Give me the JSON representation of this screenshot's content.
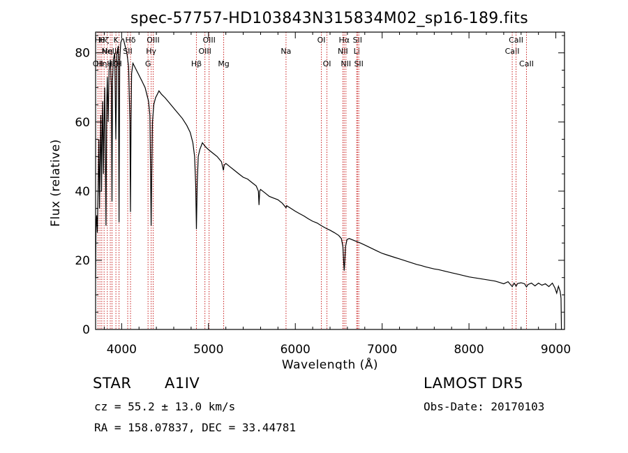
{
  "chart_data": {
    "type": "line",
    "title": "spec-57757-HD103843N315834M02_sp16-189.fits",
    "xlabel": "Wavelength (Å)",
    "ylabel": "Flux (relative)",
    "xlim": [
      3700,
      9100
    ],
    "ylim": [
      0,
      86
    ],
    "x_ticks": [
      4000,
      5000,
      6000,
      7000,
      8000,
      9000
    ],
    "y_ticks": [
      0,
      20,
      40,
      60,
      80
    ],
    "grid": false,
    "series": [
      {
        "color": "#000000",
        "points": [
          [
            3700,
            15
          ],
          [
            3705,
            30
          ],
          [
            3712,
            33
          ],
          [
            3720,
            28
          ],
          [
            3730,
            42
          ],
          [
            3738,
            55
          ],
          [
            3745,
            35
          ],
          [
            3752,
            48
          ],
          [
            3760,
            62
          ],
          [
            3768,
            40
          ],
          [
            3775,
            55
          ],
          [
            3782,
            66
          ],
          [
            3790,
            45
          ],
          [
            3798,
            60
          ],
          [
            3805,
            70
          ],
          [
            3812,
            52
          ],
          [
            3820,
            30
          ],
          [
            3828,
            65
          ],
          [
            3835,
            73
          ],
          [
            3845,
            60
          ],
          [
            3855,
            75
          ],
          [
            3870,
            78
          ],
          [
            3882,
            70
          ],
          [
            3889,
            37
          ],
          [
            3895,
            72
          ],
          [
            3905,
            78
          ],
          [
            3920,
            80
          ],
          [
            3933,
            55
          ],
          [
            3945,
            80
          ],
          [
            3962,
            82
          ],
          [
            3970,
            31
          ],
          [
            3978,
            78
          ],
          [
            3990,
            83
          ],
          [
            4005,
            84
          ],
          [
            4020,
            84
          ],
          [
            4040,
            82
          ],
          [
            4060,
            80
          ],
          [
            4080,
            76
          ],
          [
            4095,
            60
          ],
          [
            4102,
            34
          ],
          [
            4108,
            60
          ],
          [
            4115,
            74
          ],
          [
            4130,
            77
          ],
          [
            4150,
            76
          ],
          [
            4170,
            75
          ],
          [
            4190,
            74
          ],
          [
            4210,
            73
          ],
          [
            4230,
            72
          ],
          [
            4250,
            71
          ],
          [
            4270,
            70
          ],
          [
            4290,
            68
          ],
          [
            4310,
            66
          ],
          [
            4325,
            62
          ],
          [
            4334,
            44
          ],
          [
            4340,
            30
          ],
          [
            4346,
            44
          ],
          [
            4355,
            60
          ],
          [
            4370,
            65
          ],
          [
            4390,
            67
          ],
          [
            4410,
            68
          ],
          [
            4430,
            69
          ],
          [
            4460,
            68
          ],
          [
            4500,
            67
          ],
          [
            4550,
            65.5
          ],
          [
            4600,
            64
          ],
          [
            4650,
            62.5
          ],
          [
            4700,
            61
          ],
          [
            4750,
            59
          ],
          [
            4790,
            57
          ],
          [
            4820,
            54
          ],
          [
            4840,
            50
          ],
          [
            4852,
            42
          ],
          [
            4861,
            29
          ],
          [
            4870,
            42
          ],
          [
            4882,
            50
          ],
          [
            4900,
            52
          ],
          [
            4930,
            54
          ],
          [
            4960,
            53
          ],
          [
            5000,
            52
          ],
          [
            5050,
            51
          ],
          [
            5100,
            50
          ],
          [
            5150,
            48.5
          ],
          [
            5172,
            46
          ],
          [
            5180,
            47.5
          ],
          [
            5200,
            48
          ],
          [
            5250,
            47
          ],
          [
            5300,
            46
          ],
          [
            5350,
            45
          ],
          [
            5400,
            44
          ],
          [
            5450,
            43.5
          ],
          [
            5500,
            42.5
          ],
          [
            5550,
            41.5
          ],
          [
            5575,
            40
          ],
          [
            5582,
            36
          ],
          [
            5590,
            40
          ],
          [
            5600,
            40.5
          ],
          [
            5650,
            39.5
          ],
          [
            5700,
            38.5
          ],
          [
            5750,
            38
          ],
          [
            5800,
            37.5
          ],
          [
            5850,
            36.5
          ],
          [
            5893,
            35.2
          ],
          [
            5900,
            35.8
          ],
          [
            5950,
            35
          ],
          [
            6000,
            34.2
          ],
          [
            6050,
            33.5
          ],
          [
            6100,
            32.8
          ],
          [
            6150,
            32
          ],
          [
            6200,
            31.3
          ],
          [
            6250,
            30.8
          ],
          [
            6300,
            30
          ],
          [
            6350,
            29.3
          ],
          [
            6400,
            28.7
          ],
          [
            6450,
            28
          ],
          [
            6500,
            27.2
          ],
          [
            6530,
            26.3
          ],
          [
            6548,
            24
          ],
          [
            6556,
            20
          ],
          [
            6563,
            17
          ],
          [
            6570,
            20
          ],
          [
            6578,
            24
          ],
          [
            6595,
            26
          ],
          [
            6620,
            26.3
          ],
          [
            6650,
            26
          ],
          [
            6700,
            25.5
          ],
          [
            6750,
            25
          ],
          [
            6800,
            24.4
          ],
          [
            6850,
            23.8
          ],
          [
            6900,
            23.2
          ],
          [
            6950,
            22.6
          ],
          [
            7000,
            22
          ],
          [
            7050,
            21.6
          ],
          [
            7100,
            21.2
          ],
          [
            7150,
            20.8
          ],
          [
            7200,
            20.4
          ],
          [
            7250,
            20
          ],
          [
            7300,
            19.6
          ],
          [
            7350,
            19.2
          ],
          [
            7400,
            18.8
          ],
          [
            7450,
            18.5
          ],
          [
            7500,
            18.1
          ],
          [
            7550,
            17.8
          ],
          [
            7600,
            17.5
          ],
          [
            7650,
            17.3
          ],
          [
            7700,
            17
          ],
          [
            7750,
            16.7
          ],
          [
            7800,
            16.4
          ],
          [
            7850,
            16.1
          ],
          [
            7900,
            15.8
          ],
          [
            7950,
            15.5
          ],
          [
            8000,
            15.2
          ],
          [
            8050,
            15
          ],
          [
            8100,
            14.8
          ],
          [
            8150,
            14.6
          ],
          [
            8200,
            14.4
          ],
          [
            8250,
            14.2
          ],
          [
            8300,
            14
          ],
          [
            8350,
            13.6
          ],
          [
            8400,
            13.2
          ],
          [
            8450,
            13.8
          ],
          [
            8498,
            12.4
          ],
          [
            8520,
            13.4
          ],
          [
            8542,
            12.5
          ],
          [
            8560,
            13.3
          ],
          [
            8600,
            13.5
          ],
          [
            8640,
            13.2
          ],
          [
            8662,
            12.3
          ],
          [
            8680,
            13
          ],
          [
            8720,
            13.4
          ],
          [
            8760,
            12.6
          ],
          [
            8800,
            13.4
          ],
          [
            8840,
            12.8
          ],
          [
            8880,
            13.2
          ],
          [
            8920,
            12.4
          ],
          [
            8960,
            13.4
          ],
          [
            8990,
            12
          ],
          [
            9010,
            10.5
          ],
          [
            9030,
            12.5
          ],
          [
            9050,
            11
          ],
          [
            9060,
            9
          ],
          [
            9065,
            0
          ]
        ]
      }
    ],
    "line_markers": [
      {
        "wavelength": 3727,
        "label": "OII",
        "row": 3
      },
      {
        "wavelength": 3750,
        "label": "Hθ",
        "row": 1
      },
      {
        "wavelength": 3771,
        "label": "Hη",
        "row": 3
      },
      {
        "wavelength": 3798,
        "label": "Hζ",
        "row": 1
      },
      {
        "wavelength": 3835,
        "label": "Hη",
        "row": 2
      },
      {
        "wavelength": 3869,
        "label": "NeIII",
        "row": 2
      },
      {
        "wavelength": 3889,
        "label": "Hζ",
        "row": 3
      },
      {
        "wavelength": 3934,
        "label": "K",
        "row": 1
      },
      {
        "wavelength": 3970,
        "label": "H",
        "row": 3
      },
      {
        "wavelength": 4070,
        "label": "SII",
        "row": 2
      },
      {
        "wavelength": 4102,
        "label": "Hδ",
        "row": 1
      },
      {
        "wavelength": 4304,
        "label": "G",
        "row": 3
      },
      {
        "wavelength": 4340,
        "label": "Hγ",
        "row": 2
      },
      {
        "wavelength": 4363,
        "label": "OIII",
        "row": 1
      },
      {
        "wavelength": 4861,
        "label": "Hβ",
        "row": 3
      },
      {
        "wavelength": 4959,
        "label": "OIII",
        "row": 2
      },
      {
        "wavelength": 5007,
        "label": "OIII",
        "row": 1
      },
      {
        "wavelength": 5175,
        "label": "Mg",
        "row": 3
      },
      {
        "wavelength": 5893,
        "label": "Na",
        "row": 2
      },
      {
        "wavelength": 6300,
        "label": "OI",
        "row": 1
      },
      {
        "wavelength": 6364,
        "label": "OI",
        "row": 3
      },
      {
        "wavelength": 6548,
        "label": "NII",
        "row": 2
      },
      {
        "wavelength": 6563,
        "label": "Hα",
        "row": 1
      },
      {
        "wavelength": 6583,
        "label": "NII",
        "row": 3
      },
      {
        "wavelength": 6707,
        "label": "Li",
        "row": 2
      },
      {
        "wavelength": 6716,
        "label": "SII",
        "row": 1
      },
      {
        "wavelength": 6731,
        "label": "SII",
        "row": 3
      },
      {
        "wavelength": 8498,
        "label": "CaII",
        "row": 2
      },
      {
        "wavelength": 8542,
        "label": "CaII",
        "row": 1
      },
      {
        "wavelength": 8662,
        "label": "CaII",
        "row": 3
      }
    ],
    "marker_color": "#c81e1e"
  },
  "info": {
    "object_type": "STAR",
    "subclass": "A1IV",
    "survey": "LAMOST DR5",
    "cz": "cz = 55.2 ± 13.0 km/s",
    "obs_date": "Obs-Date: 20170103",
    "coords": "RA = 158.07837, DEC =  33.44781"
  }
}
